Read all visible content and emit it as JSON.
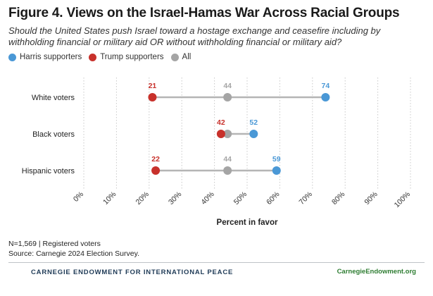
{
  "header": {
    "title": "Figure 4. Views on the Israel-Hamas War Across Racial Groups",
    "subtitle": "Should the United States push Israel toward a hostage exchange and ceasefire including by withholding financial or military aid OR without withholding financial or military aid?"
  },
  "legend": {
    "items": [
      {
        "label": "Harris supporters",
        "color": "#4a98d6"
      },
      {
        "label": "Trump supporters",
        "color": "#c8312b"
      },
      {
        "label": "All",
        "color": "#a5a5a5"
      }
    ]
  },
  "chart_data": {
    "type": "dot",
    "xlabel": "Percent in favor",
    "xlim": [
      0,
      100
    ],
    "ticks": [
      "0%",
      "10%",
      "20%",
      "30%",
      "40%",
      "50%",
      "60%",
      "70%",
      "80%",
      "90%",
      "100%"
    ],
    "categories": [
      "White voters",
      "Black voters",
      "Hispanic voters"
    ],
    "series": [
      {
        "name": "Trump supporters",
        "color": "#c8312b",
        "values": [
          21,
          42,
          22
        ]
      },
      {
        "name": "All",
        "color": "#a5a5a5",
        "values": [
          44,
          44,
          44
        ]
      },
      {
        "name": "Harris supporters",
        "color": "#4a98d6",
        "values": [
          74,
          52,
          59
        ]
      }
    ],
    "labels": [
      {
        "category": "White voters",
        "items": [
          {
            "text": "21",
            "series": "Trump supporters"
          },
          {
            "text": "44",
            "series": "All"
          },
          {
            "text": "74",
            "series": "Harris supporters"
          }
        ]
      },
      {
        "category": "Black voters",
        "items": [
          {
            "text": "42",
            "series": "Trump supporters"
          },
          {
            "text": "52",
            "series": "Harris supporters"
          }
        ]
      },
      {
        "category": "Hispanic voters",
        "items": [
          {
            "text": "22",
            "series": "Trump supporters"
          },
          {
            "text": "44",
            "series": "All"
          },
          {
            "text": "59",
            "series": "Harris supporters"
          }
        ]
      }
    ]
  },
  "notes": {
    "sample": "N=1,569 | Registered voters",
    "source": "Source: Carnegie 2024 Election Survey."
  },
  "footer": {
    "organization": "CARNEGIE ENDOWMENT FOR INTERNATIONAL PEACE",
    "website": "CarnegieEndowment.org"
  }
}
